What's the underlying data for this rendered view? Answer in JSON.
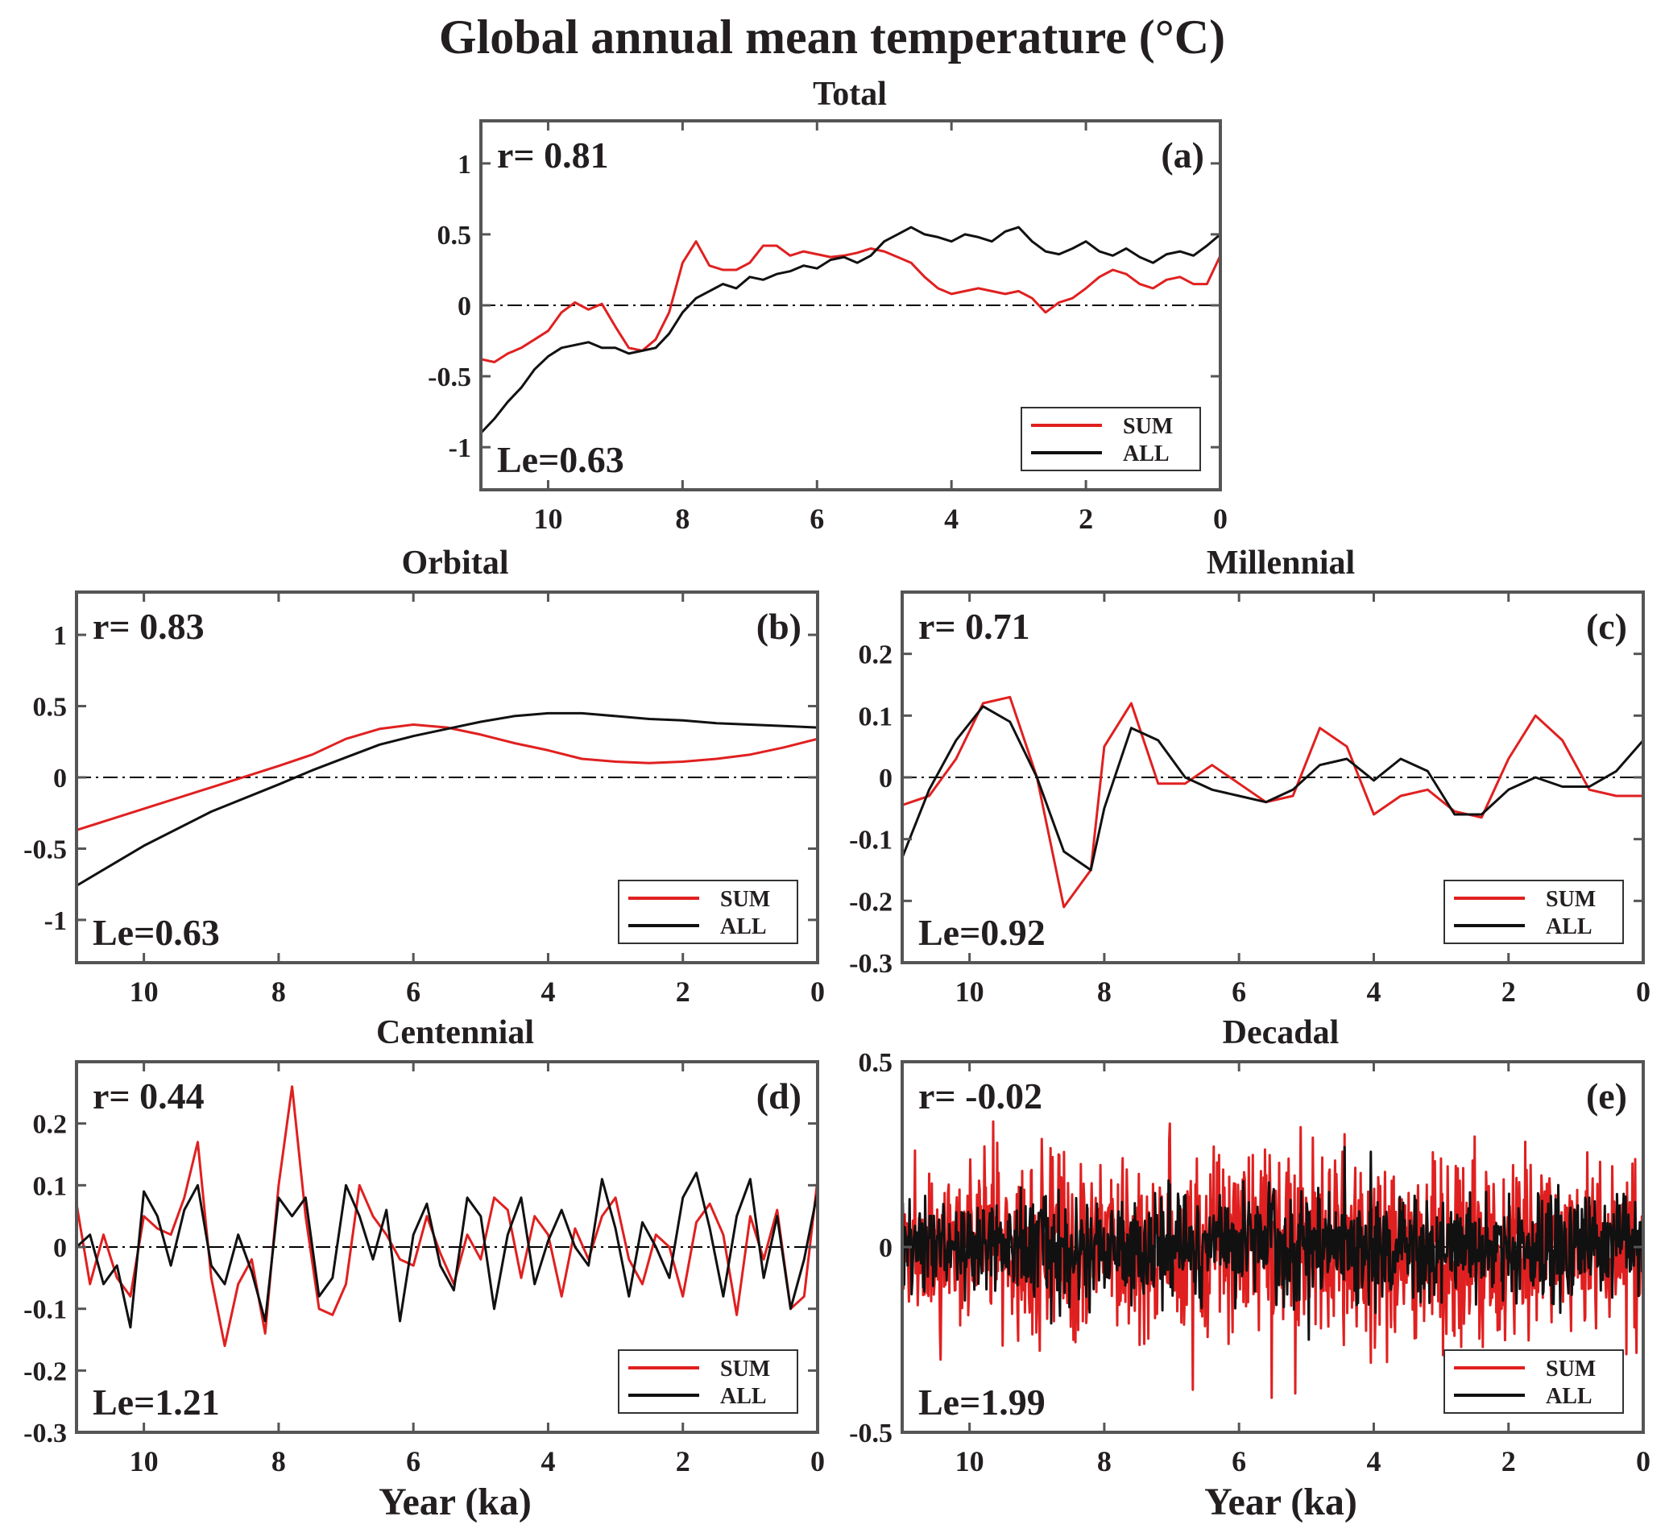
{
  "figure_title": "Global annual mean temperature (°C)",
  "colors": {
    "SUM": "#e02020",
    "ALL": "#111111"
  },
  "chart_data": [
    {
      "id": "a",
      "type": "line",
      "title": "Total",
      "panel_label": "(a)",
      "r_text": "r= 0.81",
      "le_text": "Le=0.63",
      "xlim": [
        11,
        0
      ],
      "ylim": [
        -1.3,
        1.3
      ],
      "xticks": [
        10,
        8,
        6,
        4,
        2,
        0
      ],
      "yticks": [
        1,
        0.5,
        0,
        -0.5,
        -1
      ],
      "ytick_labels": [
        "1",
        "0.5",
        "0",
        "-0.5",
        "-1"
      ],
      "xlabel": "",
      "legend": [
        "SUM",
        "ALL"
      ],
      "legend_position": "bottom-right",
      "series": [
        {
          "name": "SUM",
          "x": [
            11.0,
            10.8,
            10.6,
            10.4,
            10.2,
            10.0,
            9.8,
            9.6,
            9.4,
            9.2,
            9.0,
            8.8,
            8.6,
            8.4,
            8.2,
            8.0,
            7.8,
            7.6,
            7.4,
            7.2,
            7.0,
            6.8,
            6.6,
            6.4,
            6.2,
            6.0,
            5.8,
            5.6,
            5.4,
            5.2,
            5.0,
            4.8,
            4.6,
            4.4,
            4.2,
            4.0,
            3.8,
            3.6,
            3.4,
            3.2,
            3.0,
            2.8,
            2.6,
            2.4,
            2.2,
            2.0,
            1.8,
            1.6,
            1.4,
            1.2,
            1.0,
            0.8,
            0.6,
            0.4,
            0.2,
            0.0
          ],
          "y": [
            -0.38,
            -0.4,
            -0.34,
            -0.3,
            -0.24,
            -0.18,
            -0.05,
            0.02,
            -0.03,
            0.01,
            -0.15,
            -0.3,
            -0.32,
            -0.24,
            -0.05,
            0.3,
            0.45,
            0.28,
            0.25,
            0.25,
            0.3,
            0.42,
            0.42,
            0.35,
            0.38,
            0.36,
            0.34,
            0.35,
            0.37,
            0.4,
            0.38,
            0.34,
            0.3,
            0.2,
            0.12,
            0.08,
            0.1,
            0.12,
            0.1,
            0.08,
            0.1,
            0.05,
            -0.05,
            0.02,
            0.05,
            0.12,
            0.2,
            0.25,
            0.22,
            0.15,
            0.12,
            0.18,
            0.2,
            0.15,
            0.15,
            0.35
          ]
        },
        {
          "name": "ALL",
          "x": [
            11.0,
            10.8,
            10.6,
            10.4,
            10.2,
            10.0,
            9.8,
            9.6,
            9.4,
            9.2,
            9.0,
            8.8,
            8.6,
            8.4,
            8.2,
            8.0,
            7.8,
            7.6,
            7.4,
            7.2,
            7.0,
            6.8,
            6.6,
            6.4,
            6.2,
            6.0,
            5.8,
            5.6,
            5.4,
            5.2,
            5.0,
            4.8,
            4.6,
            4.4,
            4.2,
            4.0,
            3.8,
            3.6,
            3.4,
            3.2,
            3.0,
            2.8,
            2.6,
            2.4,
            2.2,
            2.0,
            1.8,
            1.6,
            1.4,
            1.2,
            1.0,
            0.8,
            0.6,
            0.4,
            0.2,
            0.0
          ],
          "y": [
            -0.9,
            -0.8,
            -0.68,
            -0.58,
            -0.45,
            -0.36,
            -0.3,
            -0.28,
            -0.26,
            -0.3,
            -0.3,
            -0.34,
            -0.32,
            -0.3,
            -0.2,
            -0.05,
            0.05,
            0.1,
            0.15,
            0.12,
            0.2,
            0.18,
            0.22,
            0.24,
            0.28,
            0.26,
            0.32,
            0.34,
            0.3,
            0.35,
            0.45,
            0.5,
            0.55,
            0.5,
            0.48,
            0.45,
            0.5,
            0.48,
            0.45,
            0.52,
            0.55,
            0.45,
            0.38,
            0.36,
            0.4,
            0.45,
            0.38,
            0.35,
            0.4,
            0.34,
            0.3,
            0.36,
            0.38,
            0.35,
            0.42,
            0.5
          ]
        }
      ]
    },
    {
      "id": "b",
      "type": "line",
      "title": "Orbital",
      "panel_label": "(b)",
      "r_text": "r= 0.83",
      "le_text": "Le=0.63",
      "xlim": [
        11,
        0
      ],
      "ylim": [
        -1.3,
        1.3
      ],
      "xticks": [
        10,
        8,
        6,
        4,
        2,
        0
      ],
      "yticks": [
        1,
        0.5,
        0,
        -0.5,
        -1
      ],
      "ytick_labels": [
        "1",
        "0.5",
        "0",
        "-0.5",
        "-1"
      ],
      "xlabel": "",
      "legend": [
        "SUM",
        "ALL"
      ],
      "legend_position": "bottom-right",
      "series": [
        {
          "name": "SUM",
          "x": [
            11,
            10,
            9,
            8,
            7.5,
            7,
            6.5,
            6,
            5.5,
            5,
            4.5,
            4,
            3.5,
            3,
            2.5,
            2,
            1.5,
            1,
            0.5,
            0
          ],
          "y": [
            -0.37,
            -0.22,
            -0.07,
            0.08,
            0.16,
            0.27,
            0.34,
            0.37,
            0.35,
            0.3,
            0.24,
            0.19,
            0.13,
            0.11,
            0.1,
            0.11,
            0.13,
            0.16,
            0.21,
            0.27
          ]
        },
        {
          "name": "ALL",
          "x": [
            11,
            10,
            9,
            8,
            7.5,
            7,
            6.5,
            6,
            5.5,
            5,
            4.5,
            4,
            3.5,
            3,
            2.5,
            2,
            1.5,
            1,
            0.5,
            0
          ],
          "y": [
            -0.76,
            -0.48,
            -0.24,
            -0.05,
            0.05,
            0.14,
            0.23,
            0.29,
            0.34,
            0.39,
            0.43,
            0.45,
            0.45,
            0.43,
            0.41,
            0.4,
            0.38,
            0.37,
            0.36,
            0.35
          ]
        }
      ]
    },
    {
      "id": "c",
      "type": "line",
      "title": "Millennial",
      "panel_label": "(c)",
      "r_text": "r= 0.71",
      "le_text": "Le=0.92",
      "xlim": [
        11,
        0
      ],
      "ylim": [
        -0.3,
        0.3
      ],
      "xticks": [
        10,
        8,
        6,
        4,
        2,
        0
      ],
      "yticks": [
        0.2,
        0.1,
        0,
        -0.1,
        -0.2,
        -0.3
      ],
      "ytick_labels": [
        "0.2",
        "0.1",
        "0",
        "-0.1",
        "-0.2",
        "-0.3"
      ],
      "xlabel": "",
      "legend": [
        "SUM",
        "ALL"
      ],
      "legend_position": "bottom-right",
      "series": [
        {
          "name": "SUM",
          "x": [
            11,
            10.6,
            10.2,
            9.8,
            9.4,
            9.0,
            8.6,
            8.2,
            8.0,
            7.6,
            7.2,
            6.8,
            6.4,
            6.0,
            5.6,
            5.2,
            4.8,
            4.4,
            4.0,
            3.6,
            3.2,
            2.8,
            2.4,
            2.0,
            1.6,
            1.2,
            0.8,
            0.4,
            0
          ],
          "y": [
            -0.045,
            -0.03,
            0.03,
            0.12,
            0.13,
            0.0,
            -0.21,
            -0.15,
            0.05,
            0.12,
            -0.01,
            -0.01,
            0.02,
            -0.01,
            -0.04,
            -0.03,
            0.08,
            0.05,
            -0.06,
            -0.03,
            -0.02,
            -0.055,
            -0.065,
            0.03,
            0.1,
            0.06,
            -0.02,
            -0.03,
            -0.03
          ]
        },
        {
          "name": "ALL",
          "x": [
            11,
            10.6,
            10.2,
            9.8,
            9.4,
            9.0,
            8.6,
            8.2,
            8.0,
            7.6,
            7.2,
            6.8,
            6.4,
            6.0,
            5.6,
            5.2,
            4.8,
            4.4,
            4.0,
            3.6,
            3.2,
            2.8,
            2.4,
            2.0,
            1.6,
            1.2,
            0.8,
            0.4,
            0
          ],
          "y": [
            -0.13,
            -0.02,
            0.06,
            0.115,
            0.09,
            0.0,
            -0.12,
            -0.15,
            -0.05,
            0.08,
            0.06,
            0.0,
            -0.02,
            -0.03,
            -0.04,
            -0.02,
            0.02,
            0.03,
            -0.005,
            0.03,
            0.01,
            -0.06,
            -0.06,
            -0.02,
            0.0,
            -0.015,
            -0.015,
            0.01,
            0.06
          ]
        }
      ]
    },
    {
      "id": "d",
      "type": "line",
      "title": "Centennial",
      "panel_label": "(d)",
      "r_text": "r= 0.44",
      "le_text": "Le=1.21",
      "xlim": [
        11,
        0
      ],
      "ylim": [
        -0.3,
        0.3
      ],
      "xticks": [
        10,
        8,
        6,
        4,
        2,
        0
      ],
      "yticks": [
        0.2,
        0.1,
        0,
        -0.1,
        -0.2,
        -0.3
      ],
      "ytick_labels": [
        "0.2",
        "0.1",
        "0",
        "-0.1",
        "-0.2",
        "-0.3"
      ],
      "xlabel": "Year (ka)",
      "legend": [
        "SUM",
        "ALL"
      ],
      "legend_position": "bottom-right",
      "series": [
        {
          "name": "SUM",
          "x": [
            11,
            10.8,
            10.6,
            10.4,
            10.2,
            10.0,
            9.8,
            9.6,
            9.4,
            9.2,
            9.0,
            8.8,
            8.6,
            8.4,
            8.2,
            8.0,
            7.8,
            7.6,
            7.4,
            7.2,
            7.0,
            6.8,
            6.6,
            6.4,
            6.2,
            6.0,
            5.8,
            5.6,
            5.4,
            5.2,
            5.0,
            4.8,
            4.6,
            4.4,
            4.2,
            4.0,
            3.8,
            3.6,
            3.4,
            3.2,
            3.0,
            2.8,
            2.6,
            2.4,
            2.2,
            2.0,
            1.8,
            1.6,
            1.4,
            1.2,
            1.0,
            0.8,
            0.6,
            0.4,
            0.2,
            0.0
          ],
          "y": [
            0.07,
            -0.06,
            0.02,
            -0.05,
            -0.08,
            0.05,
            0.03,
            0.02,
            0.08,
            0.17,
            -0.05,
            -0.16,
            -0.06,
            -0.02,
            -0.14,
            0.1,
            0.26,
            0.05,
            -0.1,
            -0.11,
            -0.06,
            0.1,
            0.05,
            0.02,
            -0.02,
            -0.03,
            0.05,
            -0.01,
            -0.06,
            0.02,
            -0.02,
            0.08,
            0.06,
            -0.05,
            0.05,
            0.02,
            -0.08,
            0.03,
            -0.02,
            0.05,
            0.08,
            -0.02,
            -0.06,
            0.02,
            0.0,
            -0.08,
            0.04,
            0.07,
            0.02,
            -0.11,
            0.05,
            -0.02,
            0.06,
            -0.1,
            -0.08,
            0.11
          ]
        },
        {
          "name": "ALL",
          "x": [
            11,
            10.8,
            10.6,
            10.4,
            10.2,
            10.0,
            9.8,
            9.6,
            9.4,
            9.2,
            9.0,
            8.8,
            8.6,
            8.4,
            8.2,
            8.0,
            7.8,
            7.6,
            7.4,
            7.2,
            7.0,
            6.8,
            6.6,
            6.4,
            6.2,
            6.0,
            5.8,
            5.6,
            5.4,
            5.2,
            5.0,
            4.8,
            4.6,
            4.4,
            4.2,
            4.0,
            3.8,
            3.6,
            3.4,
            3.2,
            3.0,
            2.8,
            2.6,
            2.4,
            2.2,
            2.0,
            1.8,
            1.6,
            1.4,
            1.2,
            1.0,
            0.8,
            0.6,
            0.4,
            0.2,
            0.0
          ],
          "y": [
            0.0,
            0.02,
            -0.06,
            -0.03,
            -0.13,
            0.09,
            0.05,
            -0.03,
            0.06,
            0.1,
            -0.03,
            -0.06,
            0.02,
            -0.04,
            -0.12,
            0.08,
            0.05,
            0.08,
            -0.08,
            -0.05,
            0.1,
            0.05,
            -0.02,
            0.06,
            -0.12,
            0.02,
            0.07,
            -0.03,
            -0.07,
            0.08,
            0.05,
            -0.1,
            0.02,
            0.08,
            -0.06,
            0.01,
            0.06,
            0.0,
            -0.03,
            0.11,
            0.03,
            -0.08,
            0.04,
            0.0,
            -0.05,
            0.08,
            0.12,
            0.03,
            -0.08,
            0.05,
            0.11,
            -0.05,
            0.05,
            -0.1,
            -0.02,
            0.09
          ]
        }
      ]
    },
    {
      "id": "e",
      "type": "line",
      "title": "Decadal",
      "panel_label": "(e)",
      "r_text": "r= -0.02",
      "le_text": "Le=1.99",
      "xlim": [
        11,
        0
      ],
      "ylim": [
        -0.5,
        0.5
      ],
      "xticks": [
        10,
        8,
        6,
        4,
        2,
        0
      ],
      "yticks": [
        0.5,
        0,
        -0.5
      ],
      "ytick_labels": [
        "0.5",
        "0",
        "-0.5"
      ],
      "xlabel": "Year (ka)",
      "legend": [
        "SUM",
        "ALL"
      ],
      "legend_position": "bottom-right",
      "noise": {
        "points": 1100,
        "SUM_std": 0.12,
        "ALL_std": 0.07,
        "SUM_range": [
          -0.42,
          0.4
        ],
        "ALL_range": [
          -0.25,
          0.28
        ]
      }
    }
  ]
}
